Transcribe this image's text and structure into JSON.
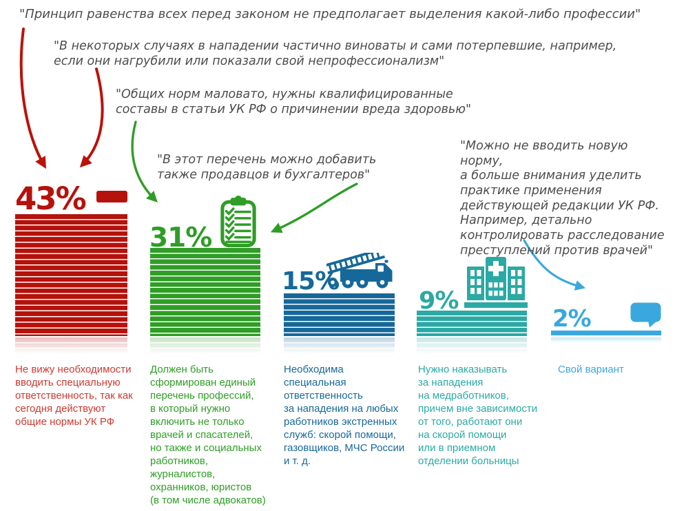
{
  "colors": {
    "quote_text": "#4d4d4d",
    "background": "#ffffff"
  },
  "chart_data": {
    "type": "bar",
    "title": "",
    "unit": "%",
    "orientation": "vertical-columns",
    "grid": false,
    "legend": false,
    "values": [
      43,
      31,
      15,
      9,
      2
    ],
    "value_labels": [
      "43%",
      "31%",
      "15%",
      "9%",
      "2%"
    ],
    "colors": [
      "#b5120b",
      "#2f9d26",
      "#16689a",
      "#2ba9a4",
      "#3aa8de"
    ],
    "caption_colors": [
      "#ce3a31",
      "#2f9d26",
      "#16689a",
      "#2ba9a4",
      "#3aa8de"
    ],
    "icons": [
      "minus-icon",
      "checklist-icon",
      "fire-truck-icon",
      "hospital-icon",
      "speech-bubble-icon"
    ],
    "categories": [
      "Не вижу необходимости\nвводить специальную\nответственность, так как\nсегодня действуют\nобщие нормы УК РФ",
      "Должен быть\nсформирован единый\nперечень профессий,\nв который нужно\nвключить не только\nврачей и спасателей,\nно также и социальных\nработников,\nжурналистов,\nохранников, юристов\n(в том числе адвокатов)",
      "Необходима\nспециальная\nответственность\nза нападения на любых\nработников экстренных\nслужб: скорой помощи,\nгазовщиков, МЧС России\nи т. д.",
      "Нужно наказывать\nза нападения\nна медработников,\nпричем вне зависимости\nот того, работают они\nна скорой помощи\nили в приемном\nотделении больницы",
      "Свой вариант"
    ],
    "annotations": [
      {
        "text": "\"Принцип равенства всех перед законом не предполагает выделения какой-либо профессии\"",
        "arrow_color": "#bb1209",
        "target": "bar 43%"
      },
      {
        "text": "\"В некоторых случаях в нападении частично виноваты и сами потерпевшие, например,\nесли они нагрубили или показали свой непрофессионализм\"",
        "arrow_color": "#bb1209",
        "target": "bar 43%"
      },
      {
        "text": "\"Общих норм маловато, нужны квалифицированные\nсоставы в статьи УК РФ о причинении вреда здоровью\"",
        "arrow_color": "#2f9d26",
        "target": "bar 31%"
      },
      {
        "text": "\"В этот перечень можно добавить\nтакже продавцов и бухгалтеров\"",
        "arrow_color": "#2f9d26",
        "target": "checklist-icon"
      },
      {
        "text": "\"Можно не вводить новую норму,\nа больше внимания уделить\nпрактике применения\nдействующей редакции УК РФ.\nНапример, детально\nконтролировать расследование\nпреступлений против врачей\"",
        "arrow_color": "#3aa8de",
        "target": "bar 2%"
      }
    ]
  }
}
